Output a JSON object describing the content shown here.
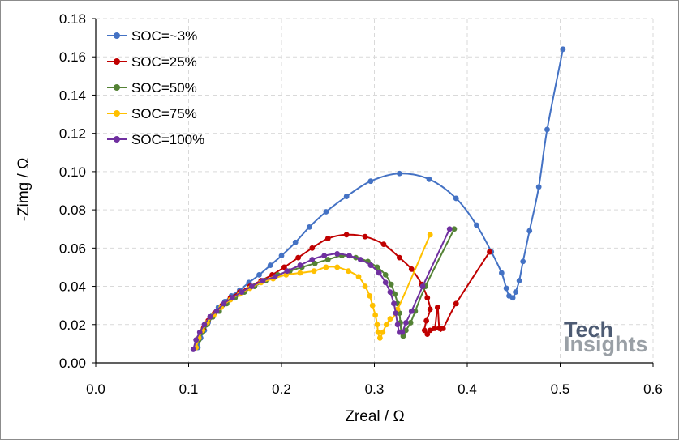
{
  "chart_data": {
    "type": "line",
    "title": "",
    "xlabel": "Zreal / Ω",
    "ylabel": "-Zimg / Ω",
    "xlim": [
      0.0,
      0.6
    ],
    "ylim": [
      0.0,
      0.18
    ],
    "xticks": [
      "0.0",
      "0.1",
      "0.2",
      "0.3",
      "0.4",
      "0.5",
      "0.6"
    ],
    "yticks": [
      "0.00",
      "0.02",
      "0.04",
      "0.06",
      "0.08",
      "0.10",
      "0.12",
      "0.14",
      "0.16",
      "0.18"
    ],
    "grid": true,
    "legend_position": "top-left",
    "logo": {
      "line1": "Tech",
      "line2": "Insights"
    },
    "series": [
      {
        "name": "SOC=~3%",
        "color": "#4472c4",
        "points": [
          [
            0.11,
            0.008
          ],
          [
            0.113,
            0.013
          ],
          [
            0.117,
            0.017
          ],
          [
            0.121,
            0.021
          ],
          [
            0.126,
            0.025
          ],
          [
            0.132,
            0.029
          ],
          [
            0.139,
            0.032
          ],
          [
            0.146,
            0.035
          ],
          [
            0.155,
            0.038
          ],
          [
            0.165,
            0.042
          ],
          [
            0.176,
            0.046
          ],
          [
            0.188,
            0.051
          ],
          [
            0.2,
            0.056
          ],
          [
            0.215,
            0.063
          ],
          [
            0.23,
            0.071
          ],
          [
            0.248,
            0.079
          ],
          [
            0.27,
            0.087
          ],
          [
            0.296,
            0.095
          ],
          [
            0.327,
            0.099
          ],
          [
            0.359,
            0.096
          ],
          [
            0.388,
            0.086
          ],
          [
            0.41,
            0.072
          ],
          [
            0.426,
            0.058
          ],
          [
            0.437,
            0.047
          ],
          [
            0.442,
            0.039
          ],
          [
            0.445,
            0.035
          ],
          [
            0.449,
            0.034
          ],
          [
            0.452,
            0.037
          ],
          [
            0.456,
            0.043
          ],
          [
            0.46,
            0.053
          ],
          [
            0.467,
            0.069
          ],
          [
            0.477,
            0.092
          ],
          [
            0.486,
            0.122
          ],
          [
            0.503,
            0.164
          ]
        ]
      },
      {
        "name": "SOC=25%",
        "color": "#c00000",
        "points": [
          [
            0.108,
            0.008
          ],
          [
            0.111,
            0.013
          ],
          [
            0.116,
            0.018
          ],
          [
            0.121,
            0.022
          ],
          [
            0.128,
            0.026
          ],
          [
            0.136,
            0.03
          ],
          [
            0.145,
            0.034
          ],
          [
            0.155,
            0.037
          ],
          [
            0.166,
            0.04
          ],
          [
            0.178,
            0.043
          ],
          [
            0.19,
            0.046
          ],
          [
            0.203,
            0.05
          ],
          [
            0.218,
            0.055
          ],
          [
            0.233,
            0.06
          ],
          [
            0.25,
            0.065
          ],
          [
            0.27,
            0.067
          ],
          [
            0.29,
            0.066
          ],
          [
            0.31,
            0.062
          ],
          [
            0.327,
            0.055
          ],
          [
            0.34,
            0.049
          ],
          [
            0.351,
            0.041
          ],
          [
            0.357,
            0.034
          ],
          [
            0.36,
            0.028
          ],
          [
            0.356,
            0.022
          ],
          [
            0.354,
            0.017
          ],
          [
            0.357,
            0.015
          ],
          [
            0.36,
            0.017
          ],
          [
            0.365,
            0.018
          ],
          [
            0.368,
            0.029
          ],
          [
            0.37,
            0.018
          ],
          [
            0.374,
            0.018
          ],
          [
            0.388,
            0.031
          ],
          [
            0.424,
            0.058
          ]
        ]
      },
      {
        "name": "SOC=50%",
        "color": "#548235",
        "points": [
          [
            0.108,
            0.008
          ],
          [
            0.111,
            0.012
          ],
          [
            0.115,
            0.016
          ],
          [
            0.12,
            0.02
          ],
          [
            0.126,
            0.024
          ],
          [
            0.133,
            0.027
          ],
          [
            0.141,
            0.031
          ],
          [
            0.15,
            0.034
          ],
          [
            0.16,
            0.037
          ],
          [
            0.171,
            0.04
          ],
          [
            0.183,
            0.043
          ],
          [
            0.196,
            0.046
          ],
          [
            0.209,
            0.048
          ],
          [
            0.222,
            0.05
          ],
          [
            0.236,
            0.052
          ],
          [
            0.25,
            0.054
          ],
          [
            0.265,
            0.056
          ],
          [
            0.28,
            0.055
          ],
          [
            0.293,
            0.053
          ],
          [
            0.303,
            0.05
          ],
          [
            0.312,
            0.046
          ],
          [
            0.318,
            0.041
          ],
          [
            0.322,
            0.036
          ],
          [
            0.325,
            0.031
          ],
          [
            0.327,
            0.026
          ],
          [
            0.328,
            0.021
          ],
          [
            0.329,
            0.016
          ],
          [
            0.331,
            0.014
          ],
          [
            0.334,
            0.017
          ],
          [
            0.339,
            0.021
          ],
          [
            0.344,
            0.027
          ],
          [
            0.355,
            0.04
          ],
          [
            0.386,
            0.07
          ]
        ]
      },
      {
        "name": "SOC=75%",
        "color": "#ffc000",
        "points": [
          [
            0.108,
            0.008
          ],
          [
            0.111,
            0.013
          ],
          [
            0.115,
            0.017
          ],
          [
            0.12,
            0.021
          ],
          [
            0.127,
            0.025
          ],
          [
            0.135,
            0.029
          ],
          [
            0.145,
            0.033
          ],
          [
            0.155,
            0.036
          ],
          [
            0.166,
            0.039
          ],
          [
            0.178,
            0.042
          ],
          [
            0.191,
            0.044
          ],
          [
            0.205,
            0.046
          ],
          [
            0.22,
            0.047
          ],
          [
            0.235,
            0.048
          ],
          [
            0.248,
            0.05
          ],
          [
            0.26,
            0.05
          ],
          [
            0.272,
            0.048
          ],
          [
            0.283,
            0.045
          ],
          [
            0.29,
            0.04
          ],
          [
            0.295,
            0.035
          ],
          [
            0.298,
            0.03
          ],
          [
            0.301,
            0.025
          ],
          [
            0.303,
            0.02
          ],
          [
            0.304,
            0.016
          ],
          [
            0.306,
            0.013
          ],
          [
            0.309,
            0.016
          ],
          [
            0.313,
            0.02
          ],
          [
            0.317,
            0.023
          ],
          [
            0.325,
            0.028
          ],
          [
            0.36,
            0.067
          ]
        ]
      },
      {
        "name": "SOC=100%",
        "color": "#7030a0",
        "points": [
          [
            0.105,
            0.007
          ],
          [
            0.108,
            0.012
          ],
          [
            0.112,
            0.016
          ],
          [
            0.117,
            0.02
          ],
          [
            0.123,
            0.024
          ],
          [
            0.13,
            0.027
          ],
          [
            0.138,
            0.031
          ],
          [
            0.147,
            0.034
          ],
          [
            0.157,
            0.037
          ],
          [
            0.168,
            0.04
          ],
          [
            0.18,
            0.043
          ],
          [
            0.193,
            0.045
          ],
          [
            0.206,
            0.048
          ],
          [
            0.22,
            0.051
          ],
          [
            0.233,
            0.054
          ],
          [
            0.246,
            0.056
          ],
          [
            0.26,
            0.057
          ],
          [
            0.273,
            0.056
          ],
          [
            0.285,
            0.054
          ],
          [
            0.296,
            0.051
          ],
          [
            0.305,
            0.047
          ],
          [
            0.312,
            0.042
          ],
          [
            0.317,
            0.037
          ],
          [
            0.321,
            0.031
          ],
          [
            0.323,
            0.026
          ],
          [
            0.325,
            0.02
          ],
          [
            0.327,
            0.016
          ],
          [
            0.33,
            0.016
          ],
          [
            0.334,
            0.021
          ],
          [
            0.34,
            0.027
          ],
          [
            0.352,
            0.04
          ],
          [
            0.381,
            0.07
          ]
        ]
      }
    ]
  }
}
